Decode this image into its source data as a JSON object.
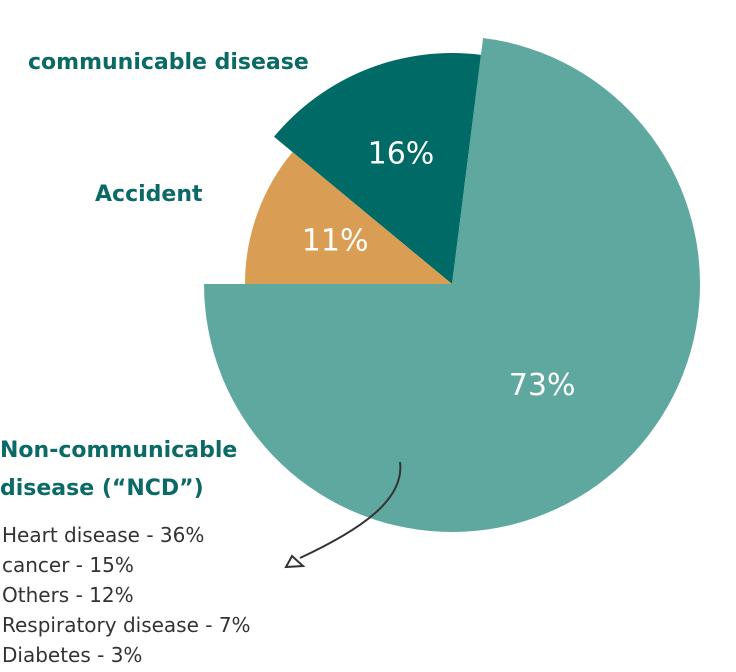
{
  "chart_data": {
    "type": "pie",
    "categories": [
      "Accident",
      "communicable disease",
      "Non-communicable disease (“NCD”)"
    ],
    "values": [
      11,
      16,
      73
    ],
    "value_labels": [
      "11%",
      "16%",
      "73%"
    ],
    "colors": [
      "#d99e54",
      "#006a66",
      "#5fa8a0"
    ],
    "breakdown": [
      "Heart disease - 36%",
      "cancer - 15%",
      "Others - 12%",
      "Respiratory disease - 7%",
      "Diabetes - 3%"
    ]
  }
}
